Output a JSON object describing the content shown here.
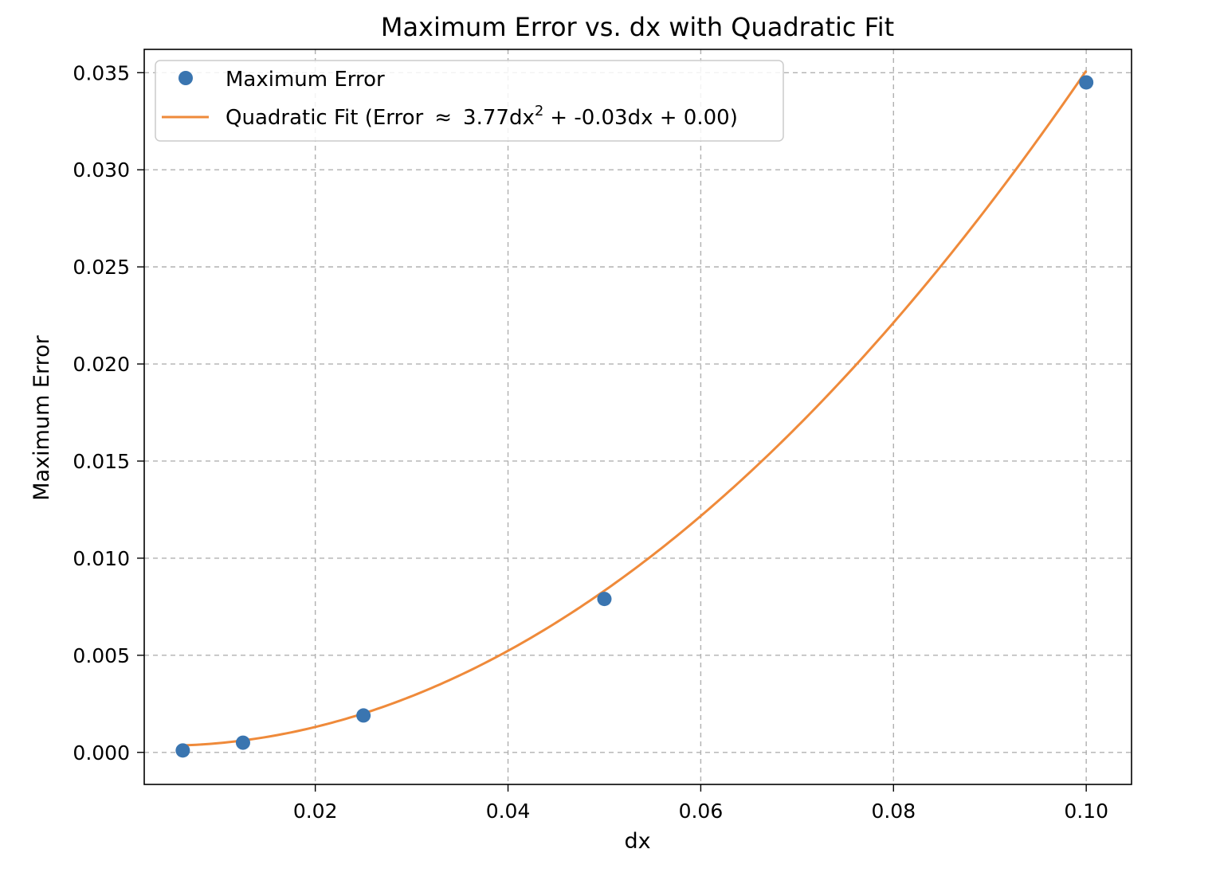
{
  "chart_data": {
    "type": "scatter",
    "title": "Maximum Error vs. dx with Quadratic Fit",
    "xlabel": "dx",
    "ylabel": "Maximum Error",
    "xlim": [
      0.00225,
      0.1047
    ],
    "ylim": [
      -0.00165,
      0.0362
    ],
    "xticks": [
      0.02,
      0.04,
      0.06,
      0.08,
      0.1
    ],
    "xtick_labels": [
      "0.02",
      "0.04",
      "0.06",
      "0.08",
      "0.10"
    ],
    "yticks": [
      0.0,
      0.005,
      0.01,
      0.015,
      0.02,
      0.025,
      0.03,
      0.035
    ],
    "ytick_labels": [
      "0.000",
      "0.005",
      "0.010",
      "0.015",
      "0.020",
      "0.025",
      "0.030",
      "0.035"
    ],
    "grid": true,
    "legend_position": "top-left",
    "series": [
      {
        "name": "Maximum Error",
        "kind": "points",
        "color": "#3a75b0",
        "x": [
          0.00625,
          0.0125,
          0.025,
          0.05,
          0.1
        ],
        "y": [
          0.0001,
          0.0005,
          0.0019,
          0.0079,
          0.0345
        ]
      },
      {
        "name": "Quadratic Fit (Error ≈ 3.77dx² + -0.03dx + 0.00)",
        "legend_parts": {
          "prefix": "Quadratic Fit (Error",
          "approx": "≈",
          "mid": "3.77dx",
          "sup": "2",
          "suffix": "+ -0.03dx + 0.00)"
        },
        "kind": "line",
        "color": "#ef8a3a",
        "coefficients": {
          "a": 3.77,
          "b": -0.03,
          "c": 0.0004
        },
        "x_range": [
          0.00625,
          0.1
        ]
      }
    ]
  }
}
